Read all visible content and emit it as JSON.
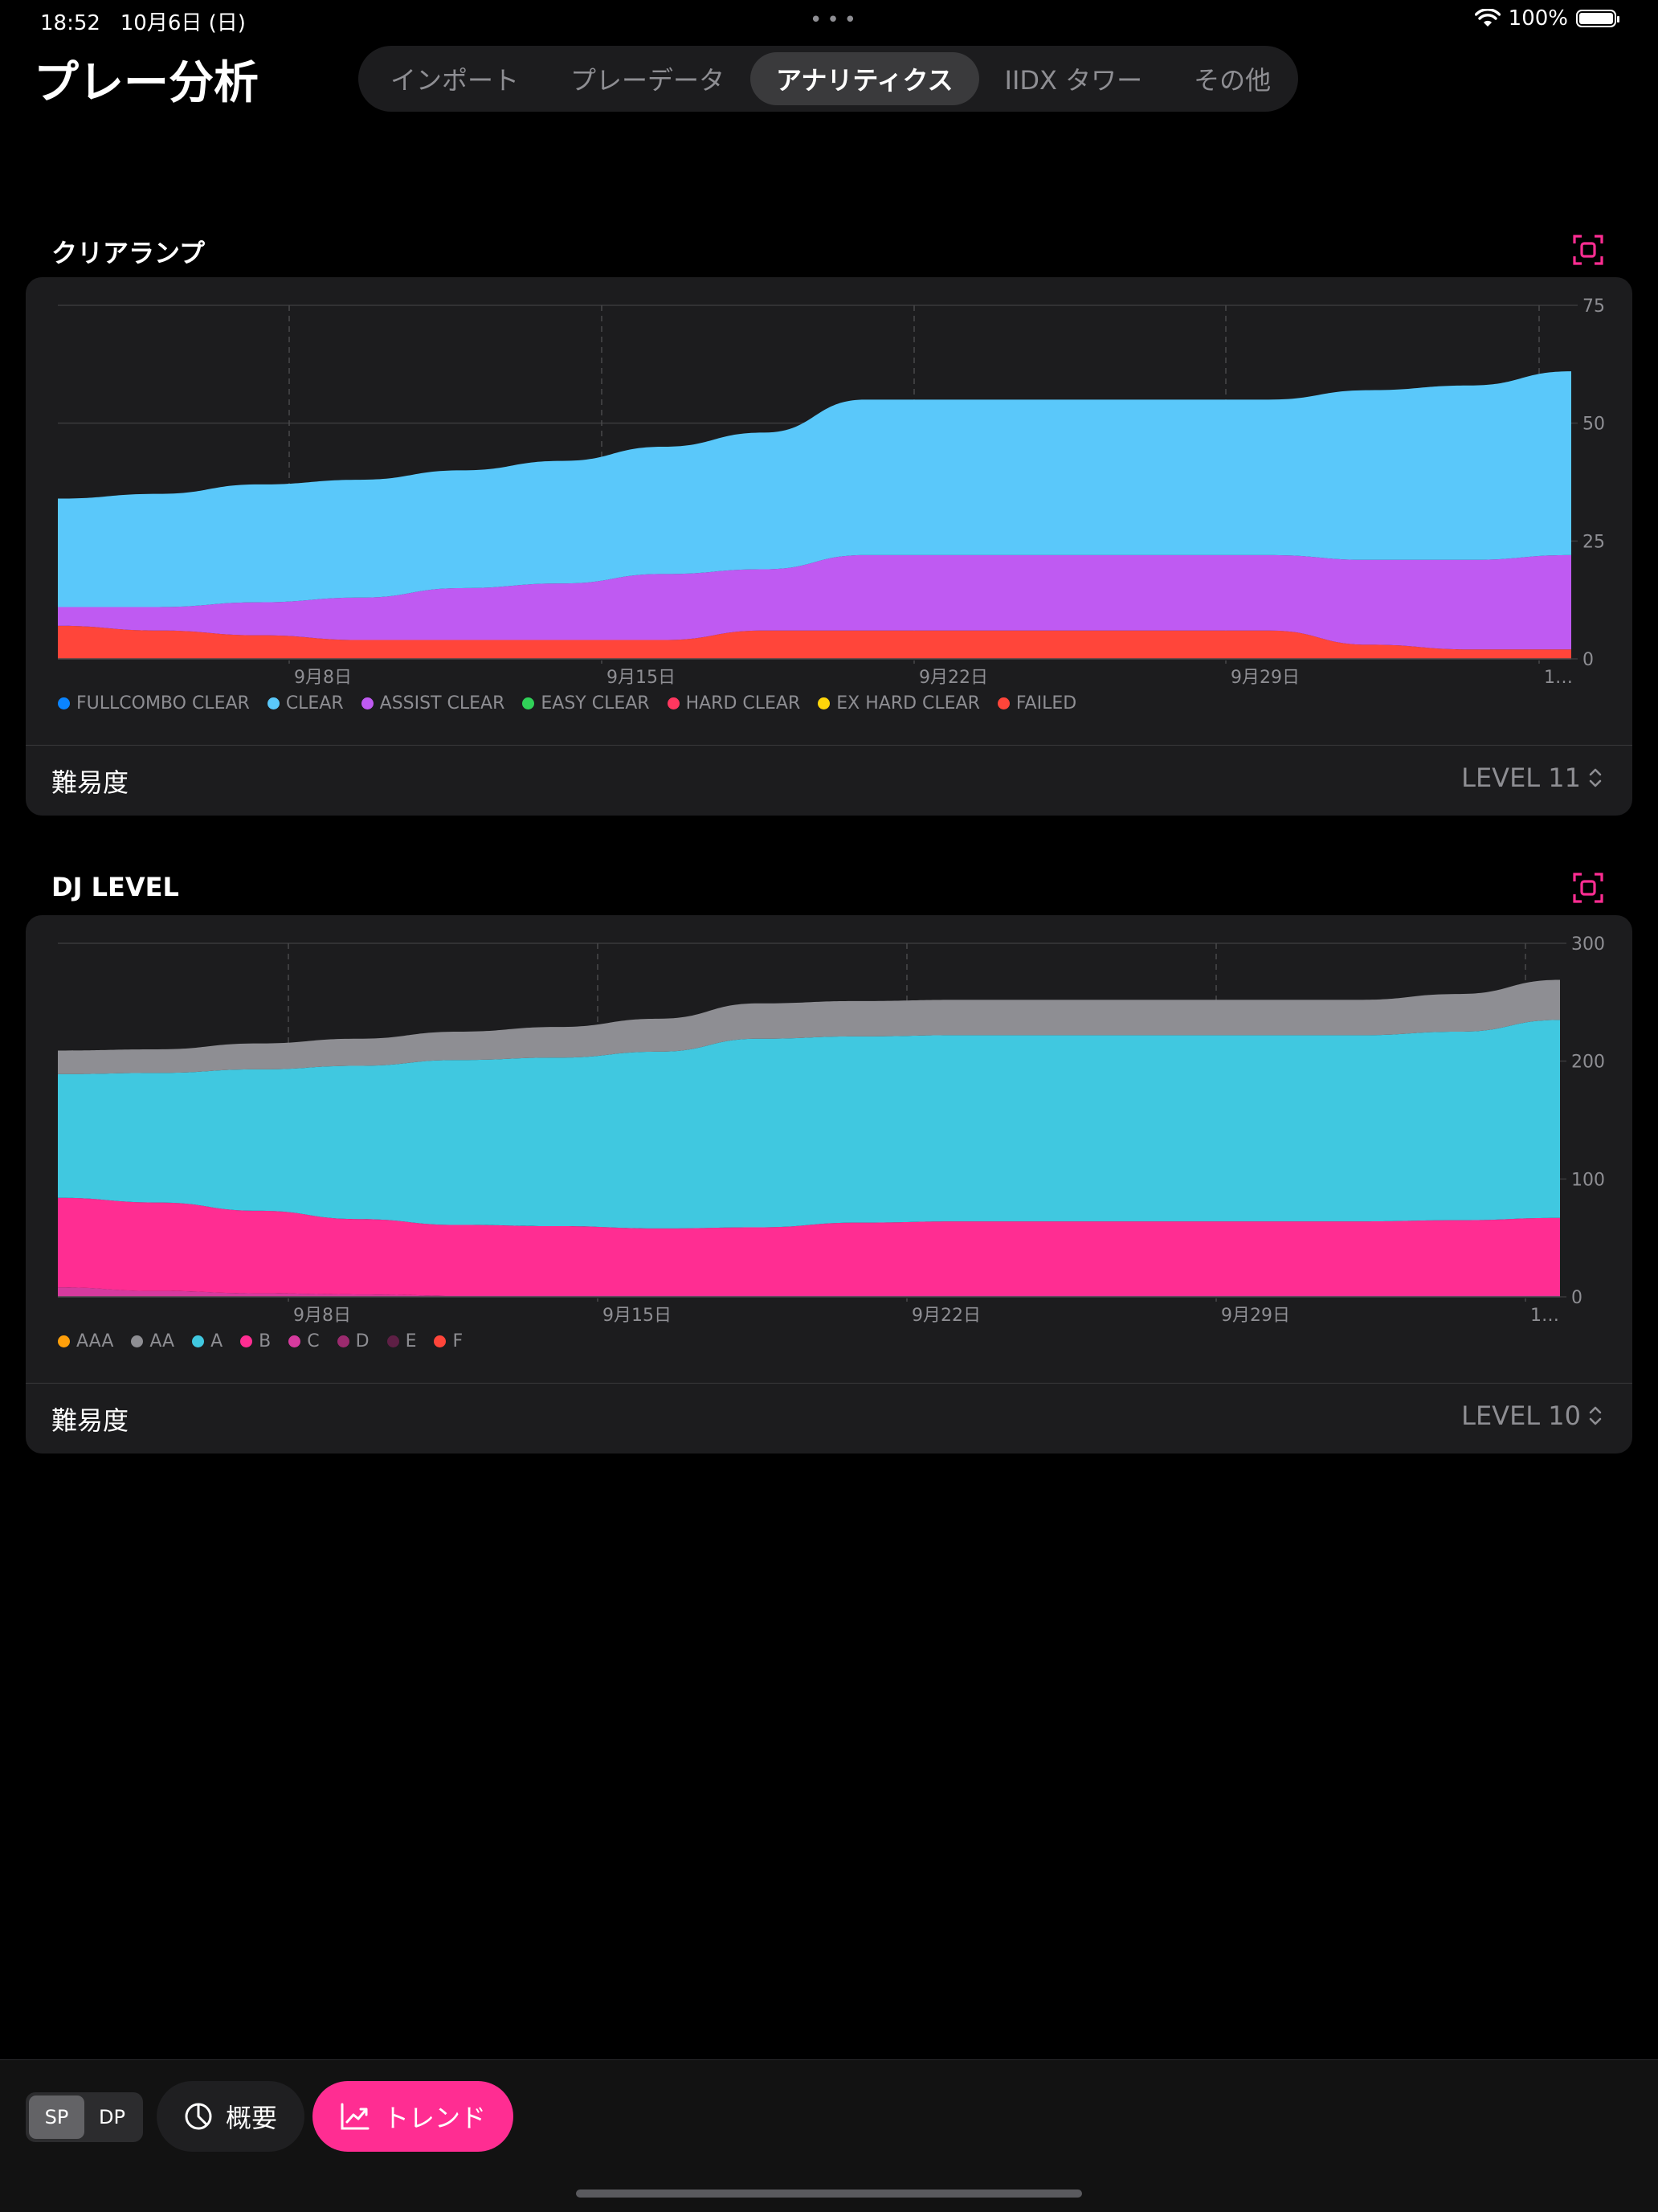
{
  "status_bar": {
    "time": "18:52",
    "date": "10月6日 (日)",
    "battery": "100%"
  },
  "header": {
    "title": "プレー分析"
  },
  "tabs": [
    {
      "label": "インポート",
      "active": false
    },
    {
      "label": "プレーデータ",
      "active": false
    },
    {
      "label": "アナリティクス",
      "active": true
    },
    {
      "label": "IIDX タワー",
      "active": false
    },
    {
      "label": "その他",
      "active": false
    }
  ],
  "clear_section": {
    "title": "クリアランプ",
    "picker_label": "難易度",
    "picker_value": "LEVEL 11",
    "legend": [
      {
        "label": "FULLCOMBO CLEAR",
        "color": "#0a84ff"
      },
      {
        "label": "CLEAR",
        "color": "#5ac8fa"
      },
      {
        "label": "ASSIST CLEAR",
        "color": "#bf5af2"
      },
      {
        "label": "EASY CLEAR",
        "color": "#30d158"
      },
      {
        "label": "HARD CLEAR",
        "color": "#ff375f"
      },
      {
        "label": "EX HARD CLEAR",
        "color": "#ffd60a"
      },
      {
        "label": "FAILED",
        "color": "#ff453a"
      }
    ]
  },
  "dj_section": {
    "title": "DJ LEVEL",
    "picker_label": "難易度",
    "picker_value": "LEVEL 10",
    "legend": [
      {
        "label": "AAA",
        "color": "#ff9f0a"
      },
      {
        "label": "AA",
        "color": "#8e8e93"
      },
      {
        "label": "A",
        "color": "#40c8e0"
      },
      {
        "label": "B",
        "color": "#ff2d92"
      },
      {
        "label": "C",
        "color": "#d63a9e"
      },
      {
        "label": "D",
        "color": "#9b2a6e"
      },
      {
        "label": "E",
        "color": "#5e1f45"
      },
      {
        "label": "F",
        "color": "#ff453a"
      }
    ]
  },
  "chart_data": [
    {
      "type": "area",
      "stacked": true,
      "x": [
        "8/31",
        "9/3",
        "9/6",
        "9/9",
        "9/12",
        "9/15",
        "9/18",
        "9/20",
        "9/22",
        "9/24",
        "9/26",
        "9/28",
        "9/30",
        "10/1",
        "10/3",
        "10/5"
      ],
      "x_tick_labels": [
        "9月8日",
        "9月15日",
        "9月22日",
        "9月29日",
        "1…"
      ],
      "y_ticks": [
        0,
        25,
        50,
        75
      ],
      "ylim": [
        0,
        75
      ],
      "grid": true,
      "series": [
        {
          "name": "FAILED",
          "color": "#ff453a",
          "values": [
            7,
            6,
            5,
            4,
            4,
            4,
            4,
            6,
            6,
            6,
            6,
            6,
            6,
            3,
            2,
            2
          ]
        },
        {
          "name": "ASSIST CLEAR",
          "color": "#bf5af2",
          "values": [
            4,
            5,
            7,
            9,
            11,
            12,
            14,
            13,
            16,
            16,
            16,
            16,
            16,
            18,
            19,
            20
          ]
        },
        {
          "name": "CLEAR",
          "color": "#5ac8fa",
          "values": [
            23,
            24,
            25,
            25,
            25,
            26,
            27,
            29,
            33,
            33,
            33,
            33,
            33,
            36,
            37,
            39
          ]
        }
      ]
    },
    {
      "type": "area",
      "stacked": true,
      "x": [
        "8/31",
        "9/3",
        "9/6",
        "9/9",
        "9/12",
        "9/15",
        "9/18",
        "9/20",
        "9/22",
        "9/24",
        "9/26",
        "9/28",
        "9/30",
        "10/1",
        "10/3",
        "10/5"
      ],
      "x_tick_labels": [
        "9月8日",
        "9月15日",
        "9月22日",
        "9月29日",
        "1…"
      ],
      "y_ticks": [
        0,
        100,
        200,
        300
      ],
      "ylim": [
        0,
        300
      ],
      "grid": true,
      "series": [
        {
          "name": "C",
          "color": "#d63a9e",
          "values": [
            8,
            5,
            3,
            2,
            1,
            1,
            1,
            1,
            1,
            1,
            1,
            1,
            1,
            1,
            1,
            1
          ]
        },
        {
          "name": "B",
          "color": "#ff2d92",
          "values": [
            76,
            75,
            70,
            64,
            60,
            59,
            57,
            58,
            62,
            63,
            63,
            63,
            63,
            63,
            64,
            66
          ]
        },
        {
          "name": "A",
          "color": "#40c8e0",
          "values": [
            105,
            110,
            120,
            130,
            140,
            143,
            150,
            160,
            158,
            158,
            158,
            158,
            158,
            158,
            160,
            168
          ]
        },
        {
          "name": "AA",
          "color": "#8e8e93",
          "values": [
            20,
            20,
            22,
            23,
            24,
            26,
            28,
            30,
            30,
            30,
            30,
            30,
            30,
            30,
            32,
            34
          ]
        }
      ]
    }
  ],
  "toolbar": {
    "sp_label": "SP",
    "dp_label": "DP",
    "overview_label": "概要",
    "trend_label": "トレンド"
  }
}
